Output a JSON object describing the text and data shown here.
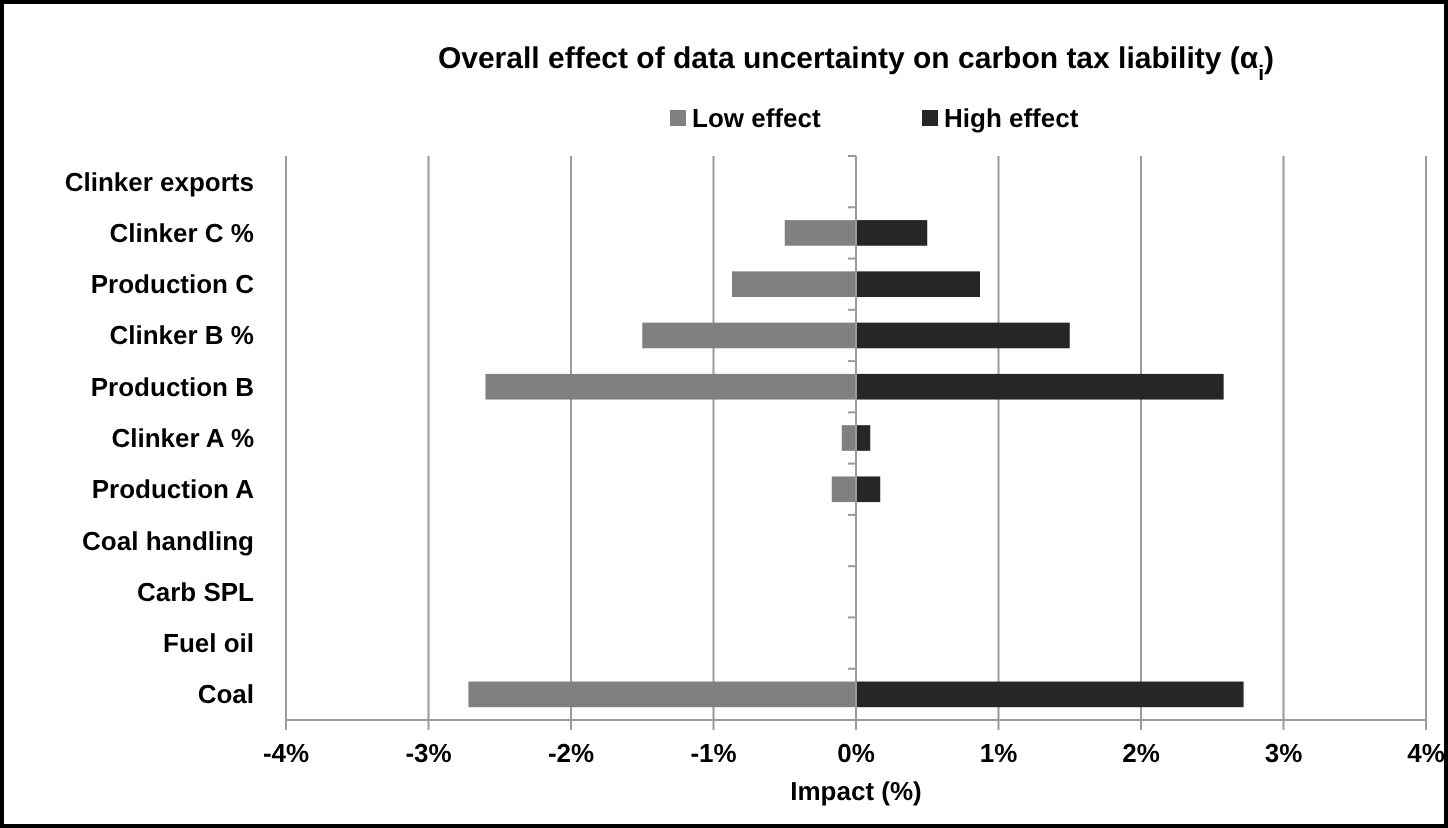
{
  "chart_data": {
    "type": "bar",
    "orientation": "horizontal",
    "stacked": true,
    "title": "Overall effect of data uncertainty on carbon tax liability (α$_{i}$)",
    "xlabel": "Impact (%)",
    "categories": [
      "Clinker exports",
      "Clinker C %",
      "Production C",
      "Clinker B %",
      "Production B",
      "Clinker A %",
      "Production A",
      "Coal handling",
      "Carb SPL",
      "Fuel oil",
      "Coal"
    ],
    "series": [
      {
        "name": "Low effect",
        "color": "#808080",
        "values": [
          0,
          -0.5,
          -0.87,
          -1.5,
          -2.6,
          -0.1,
          -0.17,
          0,
          0,
          0,
          -2.72
        ]
      },
      {
        "name": "High effect",
        "color": "#262626",
        "values": [
          0,
          0.5,
          0.87,
          1.5,
          2.58,
          0.1,
          0.17,
          0,
          0,
          0,
          2.72
        ]
      }
    ],
    "xlim": [
      -4,
      4
    ],
    "xticks": [
      {
        "value": -4,
        "label": "-4%"
      },
      {
        "value": -3,
        "label": "-3%"
      },
      {
        "value": -2,
        "label": "-2%"
      },
      {
        "value": -1,
        "label": "-1%"
      },
      {
        "value": 0,
        "label": "0%"
      },
      {
        "value": 1,
        "label": "1%"
      },
      {
        "value": 2,
        "label": "2%"
      },
      {
        "value": 3,
        "label": "3%"
      },
      {
        "value": 4,
        "label": "4%"
      }
    ],
    "grid": "x",
    "legend": "top"
  }
}
